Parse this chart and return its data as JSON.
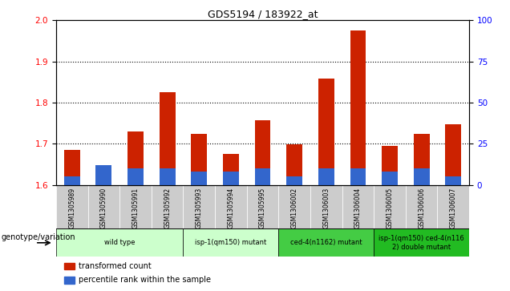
{
  "title": "GDS5194 / 183922_at",
  "samples": [
    "GSM1305989",
    "GSM1305990",
    "GSM1305991",
    "GSM1305992",
    "GSM1305993",
    "GSM1305994",
    "GSM1305995",
    "GSM1306002",
    "GSM1306003",
    "GSM1306004",
    "GSM1306005",
    "GSM1306006",
    "GSM1306007"
  ],
  "transformed_count": [
    1.685,
    1.622,
    1.73,
    1.825,
    1.725,
    1.675,
    1.758,
    1.698,
    1.858,
    1.975,
    1.695,
    1.725,
    1.748
  ],
  "percentile_rank_pct": [
    5,
    12,
    10,
    10,
    8,
    8,
    10,
    5,
    10,
    10,
    8,
    10,
    5
  ],
  "base_value": 1.6,
  "ylim_left": [
    1.6,
    2.0
  ],
  "ylim_right": [
    0,
    100
  ],
  "yticks_left": [
    1.6,
    1.7,
    1.8,
    1.9,
    2.0
  ],
  "yticks_right": [
    0,
    25,
    50,
    75,
    100
  ],
  "grid_values": [
    1.7,
    1.8,
    1.9
  ],
  "bar_color": "#cc2200",
  "blue_color": "#3366cc",
  "group_spans": [
    {
      "label": "wild type",
      "start": 0,
      "end": 3,
      "color": "#ccffcc"
    },
    {
      "label": "isp-1(qm150) mutant",
      "start": 4,
      "end": 6,
      "color": "#ccffcc"
    },
    {
      "label": "ced-4(n1162) mutant",
      "start": 7,
      "end": 9,
      "color": "#44cc44"
    },
    {
      "label": "isp-1(qm150) ced-4(n116\n2) double mutant",
      "start": 10,
      "end": 12,
      "color": "#22bb22"
    }
  ],
  "legend_bar_label": "transformed count",
  "legend_blue_label": "percentile rank within the sample",
  "genotype_label": "genotype/variation",
  "bar_width": 0.5,
  "tick_bg_color": "#cccccc",
  "plot_bg": "#f0f0f0"
}
